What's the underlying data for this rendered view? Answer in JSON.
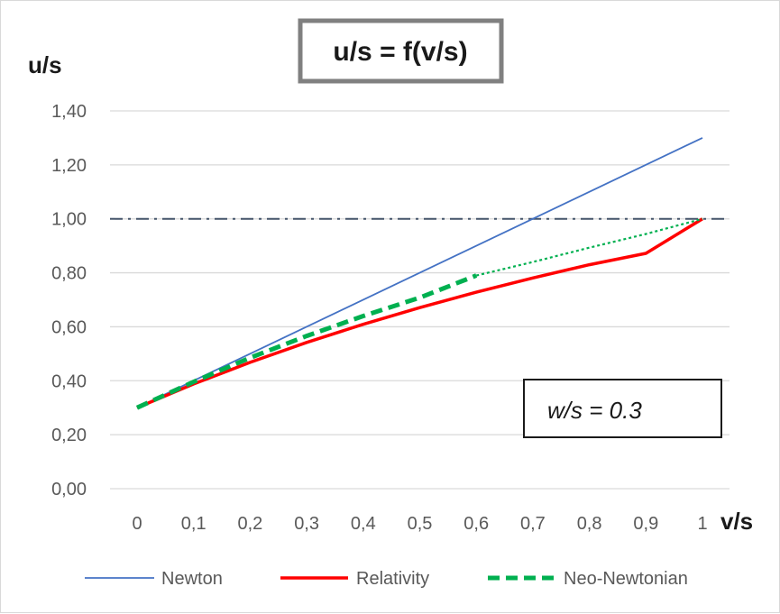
{
  "chart_data": {
    "type": "line",
    "title": "u/s = f(v/s)",
    "xlabel": "v/s",
    "ylabel": "u/s",
    "annotation": "w/s = 0.3",
    "x_tick_labels": [
      "0",
      "0,1",
      "0,2",
      "0,3",
      "0,4",
      "0,5",
      "0,6",
      "0,7",
      "0,8",
      "0,9",
      "1"
    ],
    "y_tick_labels": [
      "0,00",
      "0,20",
      "0,40",
      "0,60",
      "0,80",
      "1,00",
      "1,20",
      "1,40"
    ],
    "xlim": [
      0,
      1
    ],
    "ylim": [
      0,
      1.4
    ],
    "grid": "horizontal",
    "legend_position": "bottom",
    "reference_line": {
      "y": 1.0,
      "style": "dash-dot",
      "color": "#44546a"
    },
    "series": [
      {
        "name": "Newton",
        "color": "#4472c4",
        "style": "solid-thin",
        "x": [
          0,
          1
        ],
        "values": [
          0.3,
          1.3
        ]
      },
      {
        "name": "Relativity",
        "color": "#ff0000",
        "style": "solid-thick",
        "x": [
          0,
          0.1,
          0.2,
          0.3,
          0.4,
          0.5,
          0.6,
          0.7,
          0.8,
          0.9,
          1.0
        ],
        "values": [
          0.3,
          0.388,
          0.468,
          0.542,
          0.609,
          0.671,
          0.728,
          0.781,
          0.83,
          0.872,
          1.0
        ]
      },
      {
        "name": "Neo-Newtonian",
        "color": "#00b050",
        "style": "dashed-thick",
        "x": [
          0,
          0.1,
          0.2,
          0.3,
          0.4,
          0.5,
          0.6
        ],
        "values": [
          0.3,
          0.396,
          0.485,
          0.566,
          0.64,
          0.708,
          0.79
        ]
      },
      {
        "name": "",
        "color": "#00b050",
        "style": "dotted-thin",
        "x": [
          0.6,
          0.7,
          0.8,
          0.9,
          1.0
        ],
        "values": [
          0.79,
          0.84,
          0.893,
          0.944,
          1.0
        ]
      }
    ]
  }
}
